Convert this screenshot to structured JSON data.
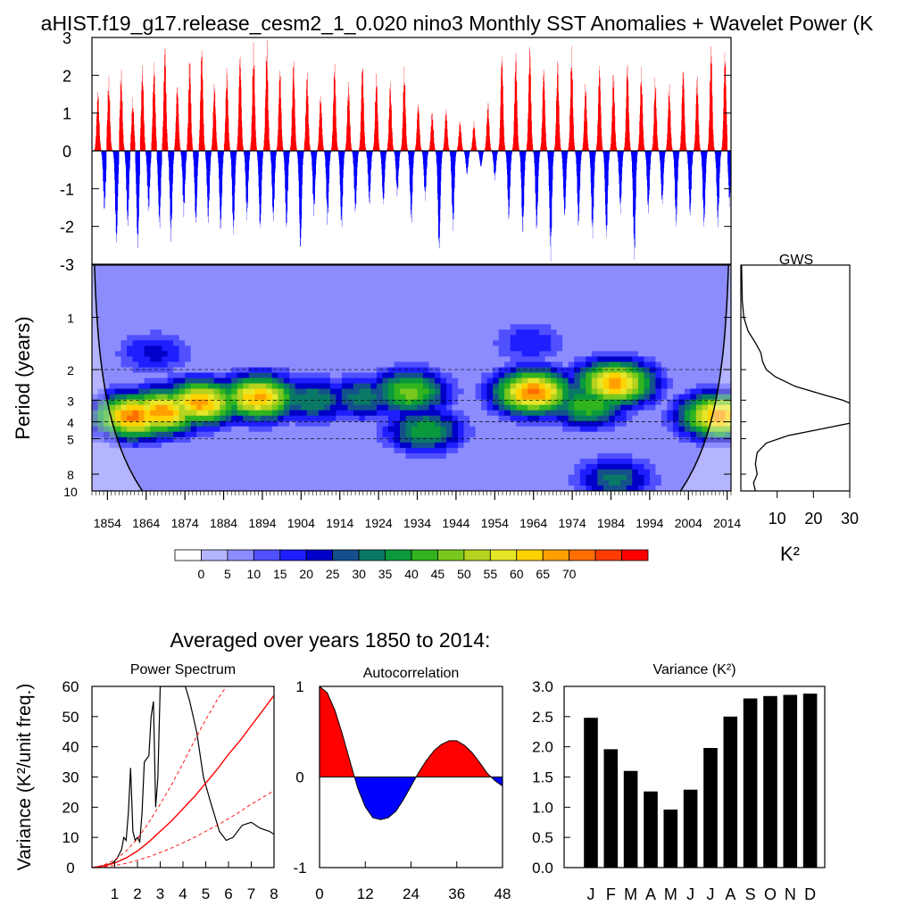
{
  "page": {
    "title": "aHIST.f19_g17.release_cesm2_1_0.020 nino3 Monthly SST Anomalies + Wavelet Power (K",
    "avg_title": "Averaged over years 1850 to 2014:"
  },
  "colors": {
    "positive": "#ff0000",
    "negative": "#0000ff",
    "bar": "#000000",
    "curve": "#000000",
    "significance": "#ff0000",
    "colorbar": [
      "#ffffff",
      "#b4b4ff",
      "#8c8cff",
      "#5050ff",
      "#1e1eff",
      "#0000c8",
      "#14508c",
      "#0a7866",
      "#0a9a3c",
      "#32b41e",
      "#78c81e",
      "#b4d21e",
      "#e6e628",
      "#ffd200",
      "#ffa000",
      "#ff6e00",
      "#ff3c00",
      "#ff0000"
    ]
  },
  "chart_data": [
    {
      "id": "sst_anomalies",
      "type": "bar",
      "title": "",
      "xlabel": "",
      "ylabel": "",
      "xlim": [
        1850,
        2015
      ],
      "ylim": [
        -3,
        3
      ],
      "yticks": [
        "3",
        "2",
        "1",
        "0",
        "-1",
        "-2",
        "-3"
      ],
      "yticks_values": [
        3,
        2,
        1,
        0,
        -1,
        -2,
        -3
      ],
      "grid": false,
      "anomaly_peaks": [
        {
          "year": 1851.5,
          "value": 1.8
        },
        {
          "year": 1853.2,
          "value": -1.7
        },
        {
          "year": 1854.3,
          "value": 2.0
        },
        {
          "year": 1856.3,
          "value": -2.8
        },
        {
          "year": 1857.5,
          "value": 2.3
        },
        {
          "year": 1859.2,
          "value": -2.1
        },
        {
          "year": 1860.5,
          "value": 1.5
        },
        {
          "year": 1861.8,
          "value": -2.9
        },
        {
          "year": 1863.0,
          "value": 2.4
        },
        {
          "year": 1864.6,
          "value": -1.7
        },
        {
          "year": 1866.0,
          "value": 2.6
        },
        {
          "year": 1867.4,
          "value": -2.3
        },
        {
          "year": 1868.8,
          "value": 3.0
        },
        {
          "year": 1870.4,
          "value": -2.5
        },
        {
          "year": 1872.0,
          "value": 2.0
        },
        {
          "year": 1873.7,
          "value": -1.8
        },
        {
          "year": 1875.2,
          "value": 2.6
        },
        {
          "year": 1876.8,
          "value": -2.2
        },
        {
          "year": 1878.3,
          "value": 3.0
        },
        {
          "year": 1880.0,
          "value": -2.0
        },
        {
          "year": 1881.6,
          "value": 2.0
        },
        {
          "year": 1883.2,
          "value": -2.4
        },
        {
          "year": 1884.8,
          "value": 2.3
        },
        {
          "year": 1886.5,
          "value": -2.4
        },
        {
          "year": 1888.2,
          "value": 2.9
        },
        {
          "year": 1890.0,
          "value": -1.9
        },
        {
          "year": 1891.7,
          "value": 3.0
        },
        {
          "year": 1893.4,
          "value": -2.4
        },
        {
          "year": 1895.1,
          "value": 3.0
        },
        {
          "year": 1896.8,
          "value": -2.0
        },
        {
          "year": 1898.5,
          "value": 2.5
        },
        {
          "year": 1900.2,
          "value": -2.2
        },
        {
          "year": 1902.0,
          "value": 2.6
        },
        {
          "year": 1903.8,
          "value": -3.0
        },
        {
          "year": 1905.5,
          "value": 2.2
        },
        {
          "year": 1907.3,
          "value": -1.8
        },
        {
          "year": 1909.0,
          "value": 1.7
        },
        {
          "year": 1910.8,
          "value": -2.0
        },
        {
          "year": 1912.6,
          "value": 2.5
        },
        {
          "year": 1914.4,
          "value": -2.3
        },
        {
          "year": 1916.2,
          "value": 1.9
        },
        {
          "year": 1918.0,
          "value": -1.8
        },
        {
          "year": 1919.8,
          "value": 2.6
        },
        {
          "year": 1921.6,
          "value": -1.5
        },
        {
          "year": 1923.4,
          "value": 2.2
        },
        {
          "year": 1925.2,
          "value": -1.6
        },
        {
          "year": 1927.0,
          "value": 1.9
        },
        {
          "year": 1928.8,
          "value": -1.3
        },
        {
          "year": 1930.6,
          "value": 2.4
        },
        {
          "year": 1932.4,
          "value": -2.0
        },
        {
          "year": 1934.2,
          "value": 1.4
        },
        {
          "year": 1936.0,
          "value": -1.4
        },
        {
          "year": 1937.8,
          "value": 1.1
        },
        {
          "year": 1939.6,
          "value": -3.0
        },
        {
          "year": 1941.4,
          "value": 1.2
        },
        {
          "year": 1943.2,
          "value": -2.2
        },
        {
          "year": 1945.0,
          "value": 0.9
        },
        {
          "year": 1946.8,
          "value": -0.7
        },
        {
          "year": 1948.6,
          "value": 0.8
        },
        {
          "year": 1950.4,
          "value": -0.5
        },
        {
          "year": 1952.2,
          "value": 1.4
        },
        {
          "year": 1954.0,
          "value": -0.8
        },
        {
          "year": 1955.8,
          "value": 2.9
        },
        {
          "year": 1957.6,
          "value": -2.0
        },
        {
          "year": 1959.4,
          "value": 2.8
        },
        {
          "year": 1961.2,
          "value": -2.5
        },
        {
          "year": 1963.0,
          "value": 3.0
        },
        {
          "year": 1964.8,
          "value": -2.3
        },
        {
          "year": 1966.6,
          "value": 2.5
        },
        {
          "year": 1968.4,
          "value": -3.0
        },
        {
          "year": 1970.2,
          "value": 2.6
        },
        {
          "year": 1972.0,
          "value": -2.0
        },
        {
          "year": 1973.8,
          "value": 2.8
        },
        {
          "year": 1975.6,
          "value": -2.2
        },
        {
          "year": 1977.4,
          "value": 2.0
        },
        {
          "year": 1979.2,
          "value": -2.4
        },
        {
          "year": 1981.0,
          "value": 2.5
        },
        {
          "year": 1982.8,
          "value": -2.6
        },
        {
          "year": 1984.6,
          "value": 2.2
        },
        {
          "year": 1986.4,
          "value": -1.8
        },
        {
          "year": 1988.2,
          "value": 2.6
        },
        {
          "year": 1990.0,
          "value": -3.0
        },
        {
          "year": 1991.8,
          "value": 2.4
        },
        {
          "year": 1993.6,
          "value": -1.8
        },
        {
          "year": 1995.4,
          "value": 2.0
        },
        {
          "year": 1997.2,
          "value": -1.6
        },
        {
          "year": 1999.0,
          "value": 1.9
        },
        {
          "year": 2000.8,
          "value": -2.1
        },
        {
          "year": 2002.6,
          "value": 2.5
        },
        {
          "year": 2004.4,
          "value": -1.9
        },
        {
          "year": 2006.2,
          "value": 2.1
        },
        {
          "year": 2008.0,
          "value": -2.3
        },
        {
          "year": 2009.8,
          "value": 3.0
        },
        {
          "year": 2011.6,
          "value": -2.1
        },
        {
          "year": 2013.4,
          "value": 3.0
        },
        {
          "year": 2014.6,
          "value": -1.6
        }
      ]
    },
    {
      "id": "wavelet_power",
      "type": "heatmap",
      "ylabel": "Period (years)",
      "xlim": [
        1850,
        2015
      ],
      "ylim": [
        0.5,
        10
      ],
      "y_log": true,
      "x_tick_labels": [
        "1854",
        "1864",
        "1874",
        "1884",
        "1894",
        "1904",
        "1914",
        "1924",
        "1934",
        "1944",
        "1954",
        "1964",
        "1974",
        "1984",
        "1994",
        "2004",
        "2014"
      ],
      "x_tick_values": [
        1854,
        1864,
        1874,
        1884,
        1894,
        1904,
        1914,
        1924,
        1934,
        1944,
        1954,
        1964,
        1974,
        1984,
        1994,
        2004,
        2014
      ],
      "y_tick_labels": [
        "1",
        "2",
        "3",
        "4",
        "5",
        "8",
        "10"
      ],
      "y_tick_values": [
        1,
        2,
        3,
        4,
        5,
        8,
        10
      ],
      "dashed_periods": [
        2,
        3,
        4,
        5
      ],
      "colorbar": {
        "tick_labels": [
          "0",
          "5",
          "10",
          "15",
          "20",
          "25",
          "30",
          "35",
          "40",
          "45",
          "50",
          "55",
          "60",
          "65",
          "70"
        ]
      },
      "power_features": [
        {
          "year": 1861,
          "period": 3.7,
          "power": 72
        },
        {
          "year": 1868,
          "period": 3.5,
          "power": 70
        },
        {
          "year": 1878,
          "period": 3.1,
          "power": 68
        },
        {
          "year": 1893,
          "period": 2.9,
          "power": 66
        },
        {
          "year": 1884,
          "period": 3.0,
          "power": 45
        },
        {
          "year": 1907,
          "period": 3.0,
          "power": 35
        },
        {
          "year": 1920,
          "period": 2.9,
          "power": 33
        },
        {
          "year": 1932,
          "period": 2.7,
          "power": 48
        },
        {
          "year": 1936,
          "period": 4.5,
          "power": 40
        },
        {
          "year": 1964,
          "period": 2.7,
          "power": 72
        },
        {
          "year": 1985,
          "period": 2.4,
          "power": 68
        },
        {
          "year": 1978,
          "period": 3.2,
          "power": 45
        },
        {
          "year": 2012,
          "period": 3.7,
          "power": 68
        },
        {
          "year": 1985,
          "period": 8.5,
          "power": 32
        },
        {
          "year": 1866,
          "period": 1.6,
          "power": 22
        },
        {
          "year": 1963,
          "period": 1.4,
          "power": 20
        }
      ]
    },
    {
      "id": "gws",
      "type": "line",
      "title": "GWS",
      "xlabel": "K²",
      "xlim": [
        0,
        30
      ],
      "x_tick_labels": [
        "10",
        "20",
        "30"
      ],
      "x_tick_values": [
        10,
        20,
        30
      ],
      "period": [
        0.5,
        0.8,
        1.0,
        1.2,
        1.4,
        1.6,
        1.8,
        2.0,
        2.2,
        2.5,
        2.8,
        3.0,
        3.3,
        3.6,
        4.0,
        4.4,
        4.8,
        5.3,
        6.0,
        7.0,
        8.0,
        9.0,
        10.0
      ],
      "power": [
        0.2,
        0.4,
        0.8,
        2.0,
        4.0,
        5.5,
        6.0,
        7.0,
        9.5,
        15.0,
        23.0,
        28.0,
        33.0,
        35.0,
        32.0,
        22.0,
        13.0,
        7.0,
        4.5,
        4.0,
        4.5,
        3.5,
        4.0
      ]
    },
    {
      "id": "power_spectrum",
      "type": "line",
      "title": "Power Spectrum",
      "ylabel": "Variance (K²/unit freq.)",
      "xlim": [
        0,
        8
      ],
      "ylim": [
        0,
        60
      ],
      "x_tick_labels": [
        "1",
        "2",
        "3",
        "4",
        "5",
        "6",
        "7",
        "8"
      ],
      "x_tick_values": [
        1,
        2,
        3,
        4,
        5,
        6,
        7,
        8
      ],
      "y_tick_labels": [
        "0",
        "10",
        "20",
        "30",
        "40",
        "50",
        "60"
      ],
      "y_tick_values": [
        0,
        10,
        20,
        30,
        40,
        50,
        60
      ],
      "series": [
        {
          "x": [
            0.0,
            0.3,
            0.6,
            0.9,
            1.1,
            1.3,
            1.4,
            1.5,
            1.6,
            1.7,
            1.8,
            1.9,
            2.0,
            2.1,
            2.2,
            2.3,
            2.5,
            2.6,
            2.7,
            2.8,
            2.9,
            3.0,
            3.1,
            3.3,
            3.6,
            3.9,
            4.1,
            4.3,
            4.6,
            4.9,
            5.2,
            5.6,
            5.9,
            6.2,
            6.6,
            7.0,
            7.4,
            7.8,
            8.0
          ],
          "y": [
            0.0,
            0.3,
            0.8,
            1.5,
            3.0,
            6.0,
            10.0,
            9.0,
            18.0,
            33.0,
            12.0,
            9.0,
            10.0,
            8.5,
            18.0,
            35.0,
            37.0,
            50.0,
            55.0,
            20.0,
            30.0,
            60.0,
            60.0,
            60.0,
            60.0,
            60.0,
            60.0,
            55.0,
            45.0,
            30.0,
            22.0,
            12.0,
            9.0,
            10.0,
            14.0,
            15.0,
            13.0,
            12.0,
            11.0
          ]
        },
        {
          "x": [
            0,
            0.5,
            1.0,
            1.5,
            2.0,
            2.5,
            3.0,
            3.5,
            4.0,
            4.5,
            5.0,
            5.5,
            6.0,
            6.5,
            7.0,
            7.5,
            8.0
          ],
          "y": [
            0,
            0.5,
            1.5,
            3.2,
            5.5,
            8.5,
            12.0,
            15.5,
            19.5,
            23.5,
            28.0,
            32.5,
            37.5,
            42.0,
            47.0,
            52.0,
            57.0
          ]
        },
        {
          "x": [
            0,
            0.5,
            1.0,
            1.5,
            2.0,
            2.5,
            3.0,
            3.5,
            4.0,
            4.5,
            5.0,
            5.5,
            6.0
          ],
          "y": [
            0,
            0.8,
            2.5,
            5.5,
            9.5,
            15.0,
            21.0,
            27.5,
            34.5,
            42.0,
            49.0,
            55.5,
            61.0
          ]
        },
        {
          "x": [
            0,
            0.5,
            1.0,
            1.5,
            2.0,
            2.5,
            3.0,
            3.5,
            4.0,
            4.5,
            5.0,
            5.5,
            6.0,
            6.5,
            7.0,
            7.5,
            8.0
          ],
          "y": [
            0,
            0.2,
            0.7,
            1.4,
            2.4,
            3.6,
            5.0,
            6.5,
            8.2,
            10.0,
            12.0,
            14.0,
            16.2,
            18.5,
            21.0,
            23.2,
            25.5
          ]
        }
      ]
    },
    {
      "id": "autocorrelation",
      "type": "area",
      "title": "Autocorrelation",
      "xlim": [
        0,
        48
      ],
      "ylim": [
        -1,
        1
      ],
      "x_tick_labels": [
        "0",
        "12",
        "24",
        "36",
        "48"
      ],
      "x_tick_values": [
        0,
        12,
        24,
        36,
        48
      ],
      "y_tick_labels": [
        "1",
        "0",
        "-1"
      ],
      "y_tick_values": [
        1,
        0,
        -1
      ],
      "lag": [
        0,
        2,
        4,
        6,
        8,
        10,
        12,
        14,
        16,
        18,
        20,
        22,
        24,
        26,
        28,
        30,
        32,
        34,
        36,
        38,
        40,
        42,
        44,
        46,
        48
      ],
      "value": [
        1.0,
        0.93,
        0.74,
        0.47,
        0.17,
        -0.12,
        -0.33,
        -0.45,
        -0.47,
        -0.45,
        -0.38,
        -0.25,
        -0.1,
        0.05,
        0.18,
        0.29,
        0.36,
        0.4,
        0.4,
        0.35,
        0.27,
        0.16,
        0.04,
        -0.04,
        -0.1
      ]
    },
    {
      "id": "variance",
      "type": "bar",
      "title": "Variance (K²)",
      "categories": [
        "J",
        "F",
        "M",
        "A",
        "M",
        "J",
        "J",
        "A",
        "S",
        "O",
        "N",
        "D"
      ],
      "values": [
        2.48,
        1.96,
        1.6,
        1.26,
        0.96,
        1.29,
        1.98,
        2.5,
        2.8,
        2.84,
        2.86,
        2.88
      ],
      "ylim": [
        0,
        3.0
      ],
      "y_tick_labels": [
        "0.0",
        "0.5",
        "1.0",
        "1.5",
        "2.0",
        "2.5",
        "3.0"
      ],
      "y_tick_values": [
        0,
        0.5,
        1.0,
        1.5,
        2.0,
        2.5,
        3.0
      ]
    }
  ]
}
